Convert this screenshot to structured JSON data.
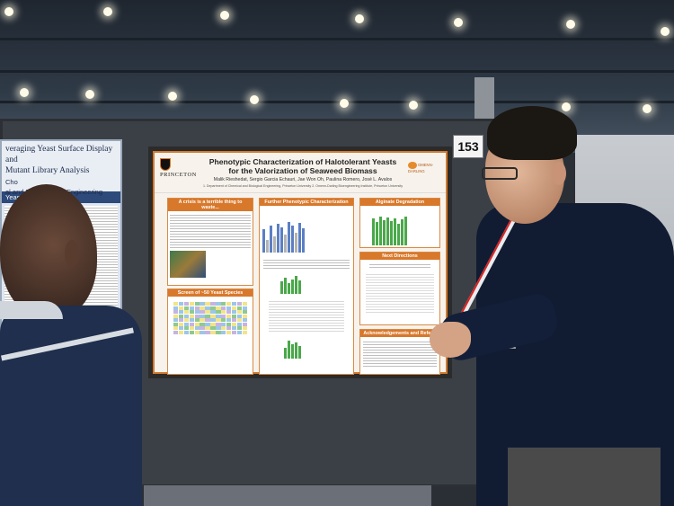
{
  "booth": {
    "number": "153"
  },
  "left_poster": {
    "title_line1": "veraging Yeast Surface Display and",
    "title_line2": "Mutant Library Analysis",
    "author": "Cho",
    "dept": "al and Biomolecular Engineering",
    "band": "Yeast Display",
    "bottom_label": "ctions"
  },
  "poster": {
    "logo": "PRINCETON",
    "partner_logo": "OMENN-DARLING",
    "title_line1": "Phenotypic Characterization of Halotolerant Yeasts",
    "title_line2": "for the Valorization of Seaweed Biomass",
    "authors": "Malik Rieshedat, Sergio Garcia Echauri, Jae Won Oh, Paulina Romero, José L. Avalos",
    "affiliation": "1. Department of Chemical and Biological Engineering, Princeton University  2. Omenn-Darling Bioengineering Institute, Princeton University",
    "sections": {
      "crisis": "A crisis is a terrible thing to waste...",
      "phenotypic": "Further Phenotypic Characterization",
      "alginate": "Alginate Degradation",
      "next": "Next Directions",
      "screen": "Screen of ~50 Yeast Species",
      "ack": "Acknowledgements and Refer..."
    }
  },
  "colors": {
    "poster_accent": "#d8782b",
    "bar_green": "#4aa84a",
    "bar_blue": "#5b7fc4"
  }
}
